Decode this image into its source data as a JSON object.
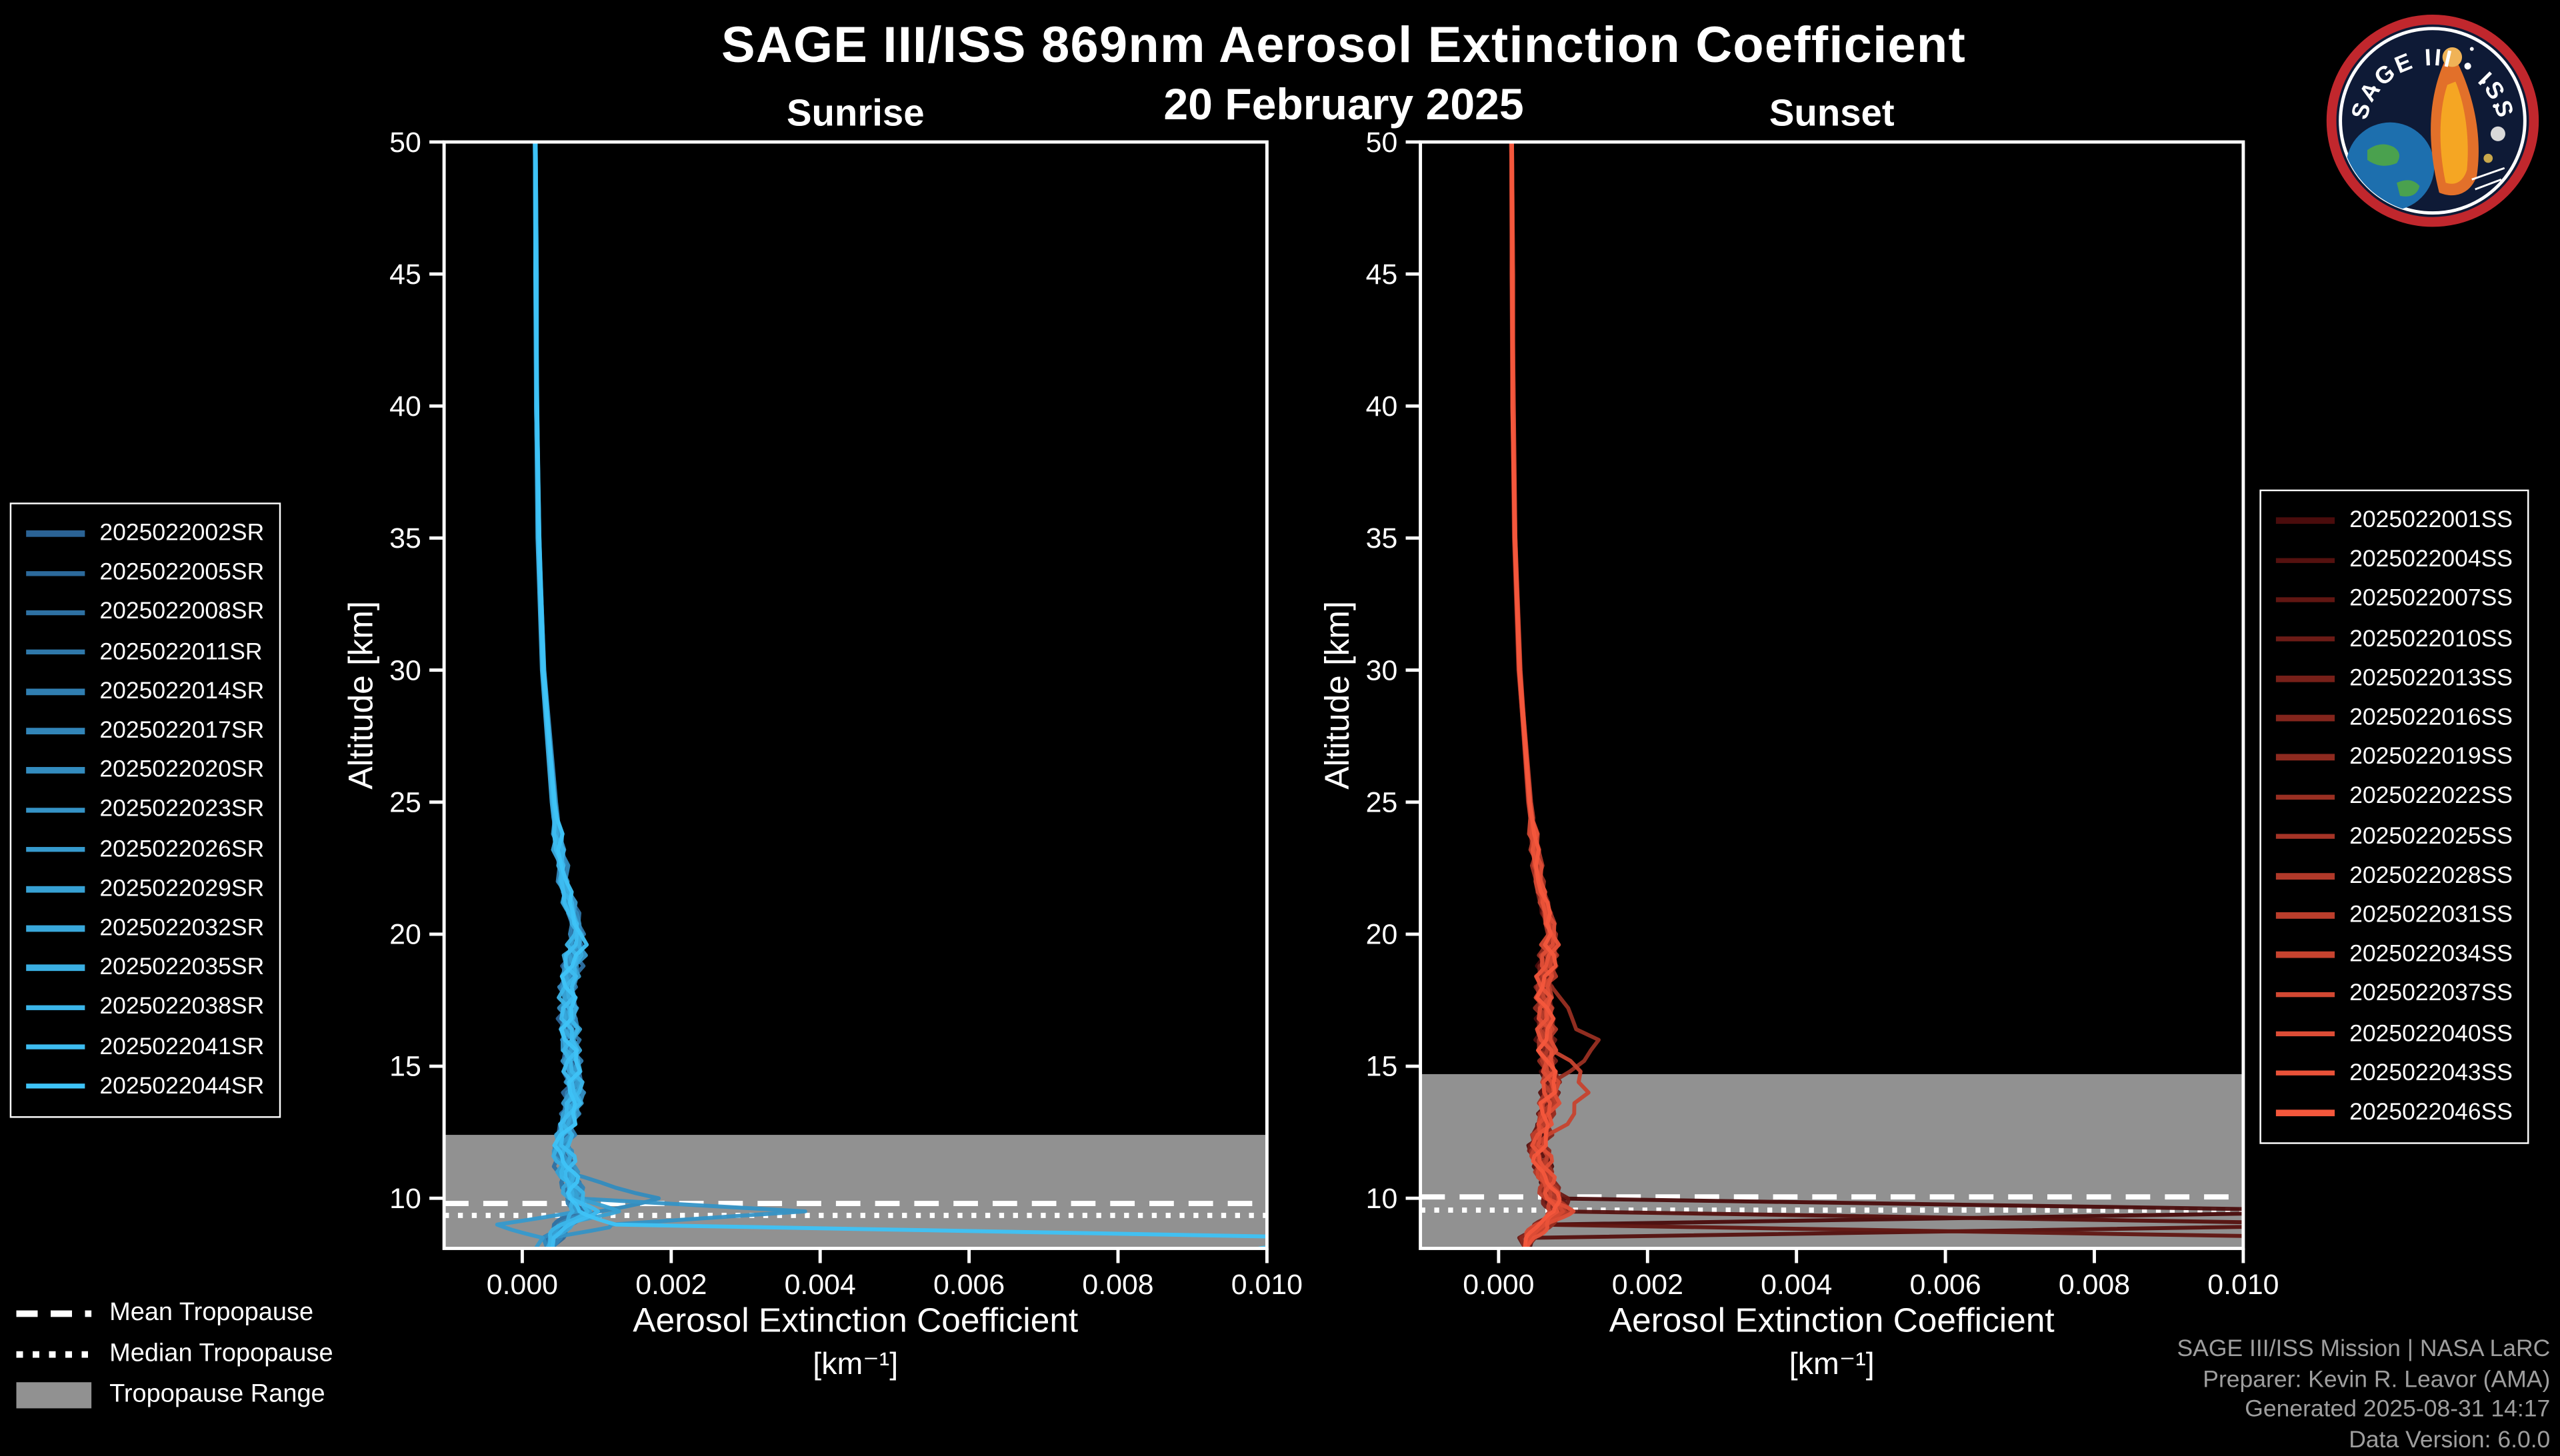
{
  "meta": {
    "title": "SAGE III/ISS 869nm Aerosol Extinction Coefficient",
    "date": "20 February 2025"
  },
  "tropopause_legend": {
    "mean_label": "Mean Tropopause",
    "median_label": "Median Tropopause",
    "range_label": "Tropopause Range"
  },
  "credits": {
    "lines": [
      "SAGE III/ISS Mission | NASA LaRC",
      "Preparer: Kevin R. Leavor (AMA)",
      "Generated 2025-08-31 14:17",
      "Data Version: 6.0.0"
    ]
  },
  "logo": {
    "title": "SAGE III • ISS"
  },
  "chart_data": [
    {
      "type": "line",
      "title": "Sunrise",
      "xlabel": "Aerosol Extinction Coefficient",
      "xunit": "[km⁻¹]",
      "ylabel": "Altitude [km]",
      "xlim": [
        -0.00105,
        0.01
      ],
      "ylim": [
        8.1,
        50
      ],
      "xticks": [
        0.0,
        0.002,
        0.004,
        0.006,
        0.008,
        0.01
      ],
      "yticks": [
        10,
        15,
        20,
        25,
        30,
        35,
        40,
        45,
        50
      ],
      "color_start": "#2b6395",
      "color_end": "#3ec3f7",
      "band_color": "#919191",
      "tropopause": {
        "mean": 9.8,
        "median": 9.35,
        "range_top": 12.4
      },
      "altitudes": [
        50,
        45,
        40,
        35,
        30,
        25,
        22,
        20,
        18,
        16,
        14,
        12,
        11,
        10,
        9.5,
        9,
        8.5
      ],
      "series": [
        {
          "name": "2025022002SR",
          "values": [
            0.00018,
            0.00018,
            0.00019,
            0.00022,
            0.00028,
            0.0004,
            0.00052,
            0.00076,
            0.00058,
            0.00062,
            0.0007,
            0.00052,
            0.00058,
            0.00066,
            0.0008,
            0.00055,
            0.00038
          ]
        },
        {
          "name": "2025022005SR",
          "values": [
            0.00017,
            0.00018,
            0.00019,
            0.00021,
            0.00027,
            0.00042,
            0.00055,
            0.00072,
            0.00061,
            0.00066,
            0.00068,
            0.00055,
            0.00061,
            0.00072,
            0.00088,
            0.0006,
            0.00042
          ]
        },
        {
          "name": "2025022008SR",
          "values": [
            0.00018,
            0.00019,
            0.0002,
            0.00023,
            0.00029,
            0.00044,
            0.00058,
            0.0008,
            0.00063,
            0.0006,
            0.00075,
            0.0005,
            0.00057,
            0.00068,
            0.00078,
            0.00052,
            0.00036
          ]
        },
        {
          "name": "2025022011SR",
          "values": [
            0.00018,
            0.00018,
            0.00019,
            0.00022,
            0.00028,
            0.00041,
            0.00054,
            0.00078,
            0.00059,
            0.00064,
            0.00072,
            0.00054,
            0.0006,
            0.0007,
            0.00085,
            0.00058,
            0.0004
          ]
        },
        {
          "name": "2025022014SR",
          "values": [
            0.00017,
            0.00018,
            0.0002,
            0.00022,
            0.00028,
            0.00043,
            0.00056,
            0.00074,
            0.0006,
            0.00063,
            0.00071,
            0.00053,
            0.00059,
            0.00069,
            0.00082,
            0.00056,
            0.00039
          ]
        },
        {
          "name": "2025022017SR",
          "values": [
            0.00018,
            0.00018,
            0.00019,
            0.00021,
            0.00027,
            0.0004,
            0.00053,
            0.0007,
            0.00062,
            0.00067,
            0.00066,
            0.00056,
            0.00063,
            0.00074,
            0.0009,
            0.00062,
            0.00044
          ]
        },
        {
          "name": "2025022020SR",
          "values": [
            0.00018,
            0.00019,
            0.00019,
            0.00022,
            0.00029,
            0.00045,
            0.00059,
            0.00077,
            0.00064,
            0.00061,
            0.00074,
            0.00051,
            0.00064,
            0.0018,
            0.00095,
            0.00054,
            0.00037
          ]
        },
        {
          "name": "2025022023SR",
          "values": [
            0.00017,
            0.00018,
            0.00019,
            0.00022,
            0.00028,
            0.00042,
            0.00055,
            0.00075,
            0.0006,
            0.00065,
            0.00073,
            0.00055,
            0.00062,
            0.00076,
            0.0038,
            0.0012,
            0.00041
          ]
        },
        {
          "name": "2025022026SR",
          "values": [
            0.00018,
            0.00018,
            0.0002,
            0.00023,
            0.00029,
            0.00043,
            0.00057,
            0.00079,
            0.00062,
            0.00062,
            0.0007,
            0.00052,
            0.00058,
            0.00067,
            0.00084,
            -0.0003,
            0.0002
          ]
        },
        {
          "name": "2025022029SR",
          "values": [
            0.00018,
            0.00019,
            0.00019,
            0.00022,
            0.00028,
            0.00041,
            0.00054,
            0.00073,
            0.00061,
            0.00066,
            0.00069,
            0.00056,
            0.0006,
            0.00071,
            0.0012,
            0.00064,
            0.00043
          ]
        },
        {
          "name": "2025022032SR",
          "values": [
            0.00017,
            0.00018,
            0.00019,
            0.00021,
            0.00027,
            0.0004,
            0.00052,
            0.00071,
            0.00059,
            0.00064,
            0.00072,
            0.00053,
            0.00059,
            0.0007,
            0.00086,
            0.00059,
            0.0004
          ]
        },
        {
          "name": "2025022035SR",
          "values": [
            0.00018,
            0.00018,
            0.0002,
            0.00022,
            0.00028,
            0.00044,
            0.00056,
            0.00076,
            0.00063,
            0.00061,
            0.00074,
            0.00051,
            0.00057,
            0.00066,
            0.00081,
            0.00053,
            0.00037
          ]
        },
        {
          "name": "2025022038SR",
          "values": [
            0.00018,
            0.00019,
            0.00019,
            0.00022,
            0.00029,
            0.00042,
            0.00055,
            0.00074,
            0.0006,
            0.00065,
            0.00071,
            0.00054,
            0.00061,
            0.00072,
            0.00087,
            0.00061,
            0.00041
          ]
        },
        {
          "name": "2025022041SR",
          "values": [
            0.00017,
            0.00018,
            0.00019,
            0.00021,
            0.00027,
            0.00041,
            0.00053,
            0.00072,
            0.00062,
            0.00063,
            0.00068,
            0.00055,
            0.00062,
            0.00073,
            0.00089,
            0.00063,
            0.00045
          ]
        },
        {
          "name": "2025022044SR",
          "values": [
            0.00018,
            0.00018,
            0.0002,
            0.00023,
            0.00028,
            0.00043,
            0.00057,
            0.00078,
            0.00061,
            0.00064,
            0.00073,
            0.00052,
            0.0006,
            0.00071,
            0.00083,
            0.0012,
            0.011
          ]
        }
      ]
    },
    {
      "type": "line",
      "title": "Sunset",
      "xlabel": "Aerosol Extinction Coefficient",
      "xunit": "[km⁻¹]",
      "ylabel": "Altitude [km]",
      "xlim": [
        -0.00105,
        0.01
      ],
      "ylim": [
        8.1,
        50
      ],
      "xticks": [
        0.0,
        0.002,
        0.004,
        0.006,
        0.008,
        0.01
      ],
      "yticks": [
        10,
        15,
        20,
        25,
        30,
        35,
        40,
        45,
        50
      ],
      "color_start": "#4a0c0c",
      "color_end": "#f4573c",
      "band_color": "#919191",
      "tropopause": {
        "mean": 10.05,
        "median": 9.55,
        "range_top": 14.7
      },
      "altitudes": [
        50,
        45,
        40,
        35,
        30,
        25,
        22,
        20,
        18,
        16,
        14,
        12,
        11,
        10,
        9.5,
        9,
        8.5
      ],
      "series": [
        {
          "name": "2025022001SS",
          "values": [
            0.00018,
            0.00018,
            0.00019,
            0.00022,
            0.00028,
            0.0004,
            0.00052,
            0.00068,
            0.0006,
            0.00064,
            0.00071,
            0.00054,
            0.00061,
            0.00072,
            0.012,
            0.00065,
            0.00042
          ]
        },
        {
          "name": "2025022004SS",
          "values": [
            0.00017,
            0.00018,
            0.00019,
            0.00021,
            0.00027,
            0.00041,
            0.00054,
            0.0007,
            0.00062,
            0.00062,
            0.00069,
            0.00052,
            0.00059,
            0.00069,
            0.00084,
            0.012,
            0.00046
          ]
        },
        {
          "name": "2025022007SS",
          "values": [
            0.00018,
            0.00019,
            0.0002,
            0.00022,
            0.00028,
            0.00042,
            0.00055,
            0.00072,
            0.00061,
            0.00065,
            0.00073,
            0.00055,
            0.00062,
            0.00074,
            0.00088,
            0.00062,
            0.0115
          ]
        },
        {
          "name": "2025022010SS",
          "values": [
            0.00018,
            0.00018,
            0.00019,
            0.00022,
            0.00028,
            0.0004,
            0.00053,
            0.00069,
            0.00059,
            0.00063,
            0.0007,
            0.00053,
            0.00068,
            0.0009,
            0.00082,
            0.00058,
            0.0004
          ]
        },
        {
          "name": "2025022013SS",
          "values": [
            0.00017,
            0.00018,
            0.00019,
            0.00021,
            0.00027,
            0.00042,
            0.00054,
            0.00071,
            0.0006,
            0.00061,
            0.00068,
            0.00051,
            0.00058,
            0.00068,
            0.0008,
            0.00055,
            0.00038
          ]
        },
        {
          "name": "2025022016SS",
          "values": [
            0.00018,
            0.00018,
            0.0002,
            0.00022,
            0.00028,
            0.00043,
            0.00056,
            0.00073,
            0.00062,
            0.00066,
            0.00072,
            0.00056,
            0.00063,
            0.00073,
            0.00086,
            0.0006,
            0.00041
          ]
        },
        {
          "name": "2025022019SS",
          "values": [
            0.00018,
            0.00019,
            0.00019,
            0.00022,
            0.00029,
            0.00041,
            0.00053,
            0.0007,
            0.00061,
            0.00064,
            0.00071,
            0.00054,
            0.0006,
            0.0007,
            0.00083,
            0.00057,
            0.00039
          ]
        },
        {
          "name": "2025022022SS",
          "values": [
            0.00017,
            0.00018,
            0.00019,
            0.00022,
            0.00028,
            0.00042,
            0.00055,
            0.00072,
            0.00063,
            0.0013,
            0.00074,
            0.00052,
            0.00059,
            0.00069,
            0.00085,
            0.00059,
            0.0004
          ]
        },
        {
          "name": "2025022025SS",
          "values": [
            0.00018,
            0.00018,
            0.00019,
            0.00021,
            0.00027,
            0.0004,
            0.00052,
            0.00069,
            0.0006,
            0.00062,
            0.00069,
            0.00053,
            0.00061,
            0.00071,
            0.00081,
            0.00056,
            0.00038
          ]
        },
        {
          "name": "2025022028SS",
          "values": [
            0.00018,
            0.00019,
            0.0002,
            0.00023,
            0.00029,
            0.00044,
            0.00057,
            0.00074,
            0.00062,
            0.00065,
            0.00072,
            0.00055,
            0.00062,
            0.00072,
            0.00087,
            0.00061,
            0.00042
          ]
        },
        {
          "name": "2025022031SS",
          "values": [
            0.00017,
            0.00018,
            0.00019,
            0.00022,
            0.00028,
            0.00041,
            0.00054,
            0.00071,
            0.00061,
            0.00063,
            0.0007,
            0.00054,
            0.0006,
            0.0007,
            0.00084,
            0.00058,
            0.0004
          ]
        },
        {
          "name": "2025022034SS",
          "values": [
            0.00018,
            0.00018,
            0.00019,
            0.00022,
            0.00028,
            0.00043,
            0.00055,
            0.00072,
            0.0006,
            0.00064,
            0.00125,
            0.00053,
            0.00059,
            0.00068,
            0.00082,
            0.00057,
            0.00039
          ]
        },
        {
          "name": "2025022037SS",
          "values": [
            0.00018,
            0.00019,
            0.00019,
            0.00021,
            0.00027,
            0.0004,
            0.00053,
            0.0007,
            0.00062,
            0.00062,
            0.00071,
            0.00052,
            0.00061,
            0.00071,
            0.00086,
            0.0006,
            0.00041
          ]
        },
        {
          "name": "2025022040SS",
          "values": [
            0.00017,
            0.00018,
            0.0002,
            0.00022,
            0.00028,
            0.00042,
            0.00056,
            0.00073,
            0.00061,
            0.00066,
            0.00073,
            0.00056,
            0.00062,
            0.00073,
            0.00088,
            0.00062,
            0.00043
          ]
        },
        {
          "name": "2025022043SS",
          "values": [
            0.00018,
            0.00018,
            0.00019,
            0.00022,
            0.00029,
            0.00041,
            0.00054,
            0.00071,
            0.0006,
            0.00063,
            0.0007,
            0.00054,
            0.0006,
            0.00072,
            0.00085,
            0.00059,
            0.0004
          ]
        },
        {
          "name": "2025022046SS",
          "values": [
            0.00018,
            0.00019,
            0.00019,
            0.00022,
            0.00028,
            0.00042,
            0.00055,
            0.00072,
            0.00062,
            0.00064,
            0.00071,
            0.00055,
            0.00061,
            0.0007,
            0.00083,
            0.00058,
            0.00039
          ]
        }
      ]
    }
  ]
}
